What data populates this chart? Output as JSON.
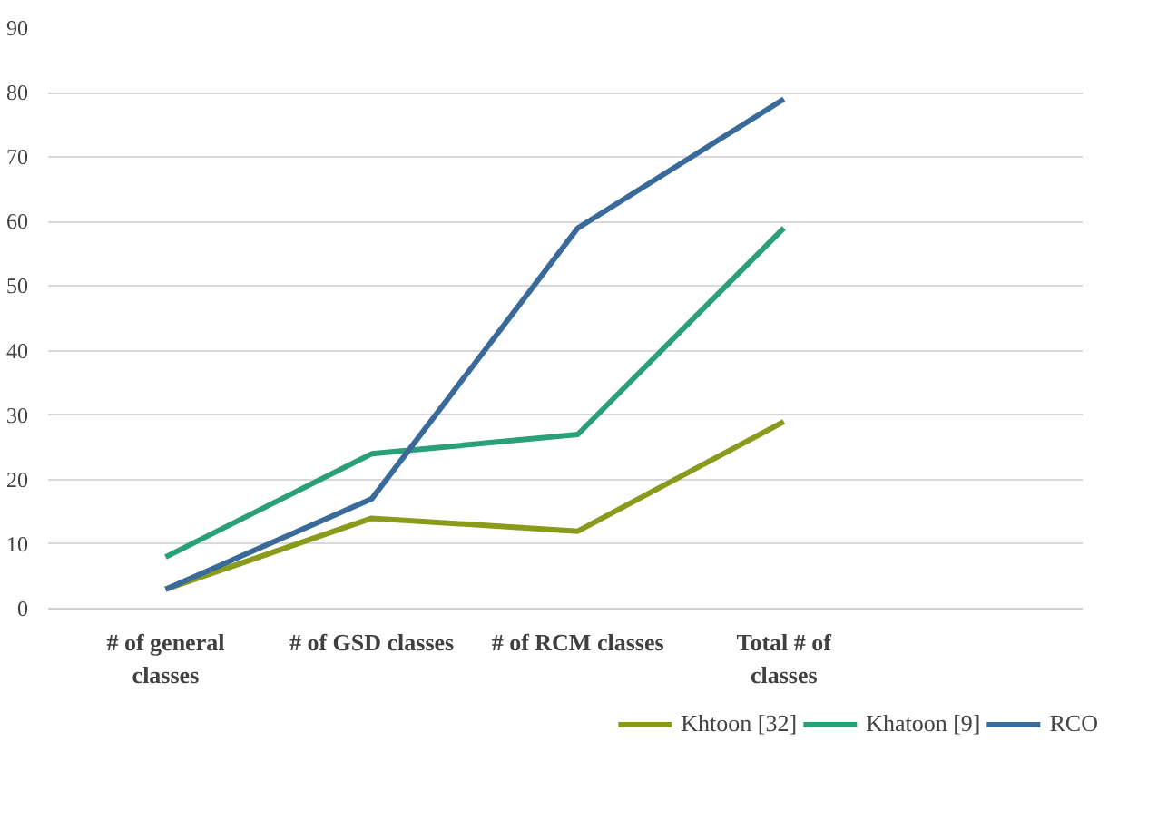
{
  "chart_data": {
    "type": "line",
    "categories": [
      "# of general classes",
      "# of GSD classes",
      "# of RCM classes",
      "Total # of classes"
    ],
    "series": [
      {
        "name": "Khtoon [32]",
        "color": "#8a9a1b",
        "values": [
          3,
          14,
          12,
          29
        ]
      },
      {
        "name": "Khatoon [9]",
        "color": "#2aa07a",
        "values": [
          8,
          24,
          27,
          59
        ]
      },
      {
        "name": "RCO",
        "color": "#3a6a9a",
        "values": [
          3,
          17,
          59,
          79
        ]
      }
    ],
    "ylim": [
      0,
      90
    ],
    "yticks": [
      0,
      10,
      20,
      30,
      40,
      50,
      60,
      70,
      80,
      90
    ],
    "grid": "y",
    "legend": "bottom",
    "marker": "none",
    "line_style": "solid"
  }
}
